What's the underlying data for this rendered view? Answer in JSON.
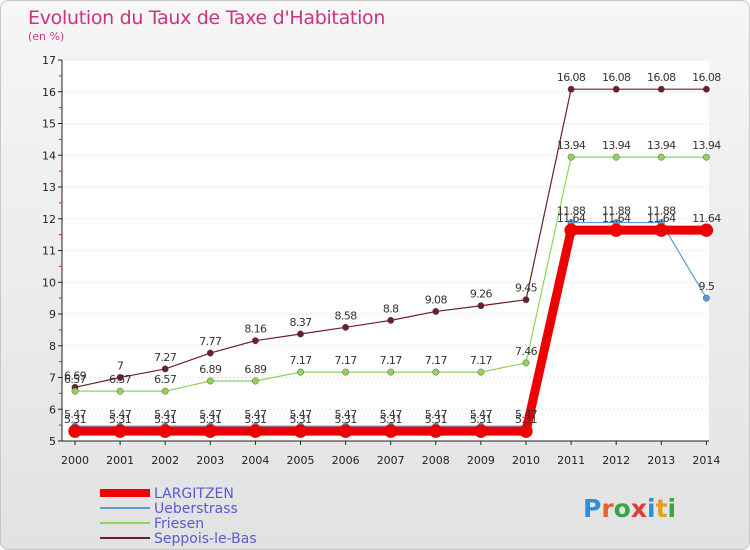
{
  "chart_data": {
    "type": "line",
    "title": "Evolution du Taux de Taxe d'Habitation",
    "ylabel": "(en %)",
    "xlabel": "",
    "x": [
      "2000",
      "2001",
      "2002",
      "2003",
      "2004",
      "2005",
      "2006",
      "2007",
      "2008",
      "2009",
      "2010",
      "2011",
      "2012",
      "2013",
      "2014"
    ],
    "ylim": [
      5,
      17
    ],
    "yticks": [
      5,
      6,
      7,
      8,
      9,
      10,
      11,
      12,
      13,
      14,
      15,
      16,
      17
    ],
    "series": [
      {
        "name": "LARGITZEN",
        "color": "#ee0000",
        "values": [
          5.31,
          5.31,
          5.31,
          5.31,
          5.31,
          5.31,
          5.31,
          5.31,
          5.31,
          5.31,
          5.31,
          11.64,
          11.64,
          11.64,
          11.64
        ],
        "labels": [
          "5.31",
          "5.31",
          "5.31",
          "5.31",
          "5.31",
          "5.31",
          "5.31",
          "5.31",
          "5.31",
          "5.31",
          "5.31",
          "11.64",
          "11.64",
          "11.64",
          "11.64"
        ]
      },
      {
        "name": "Ueberstrass",
        "color": "#5a9bd5",
        "values": [
          5.47,
          5.47,
          5.47,
          5.47,
          5.47,
          5.47,
          5.47,
          5.47,
          5.47,
          5.47,
          5.47,
          11.88,
          11.88,
          11.88,
          9.5
        ],
        "labels": [
          "5.47",
          "5.47",
          "5.47",
          "5.47",
          "5.47",
          "5.47",
          "5.47",
          "5.47",
          "5.47",
          "5.47",
          "5.47",
          "11.88",
          "11.88",
          "11.88",
          "9.5"
        ]
      },
      {
        "name": "Friesen",
        "color": "#8fd35a",
        "values": [
          6.57,
          6.57,
          6.57,
          6.89,
          6.89,
          7.17,
          7.17,
          7.17,
          7.17,
          7.17,
          7.46,
          13.94,
          13.94,
          13.94,
          13.94
        ],
        "labels": [
          "6.57",
          "6.57",
          "6.57",
          "6.89",
          "6.89",
          "7.17",
          "7.17",
          "7.17",
          "7.17",
          "7.17",
          "7.46",
          "13.94",
          "13.94",
          "13.94",
          "13.94"
        ]
      },
      {
        "name": "Seppois-le-Bas",
        "color": "#6b1f26",
        "values": [
          6.69,
          7,
          7.27,
          7.77,
          8.16,
          8.37,
          8.58,
          8.8,
          9.08,
          9.26,
          9.45,
          16.08,
          16.08,
          16.08,
          16.08
        ],
        "labels": [
          "6.69",
          "7",
          "7.27",
          "7.77",
          "8.16",
          "8.37",
          "8.58",
          "8.8",
          "9.08",
          "9.26",
          "9.45",
          "16.08",
          "16.08",
          "16.08",
          "16.08"
        ]
      }
    ],
    "legend_position": "bottom-left"
  },
  "logo": {
    "letters": [
      "P",
      "r",
      "o",
      "x",
      "i",
      "t",
      "i"
    ],
    "colors": [
      "#2e8fd6",
      "#e0652a",
      "#3aa44a",
      "#e03a3a",
      "#2e8fd6",
      "#e0a020",
      "#3aa44a"
    ]
  }
}
